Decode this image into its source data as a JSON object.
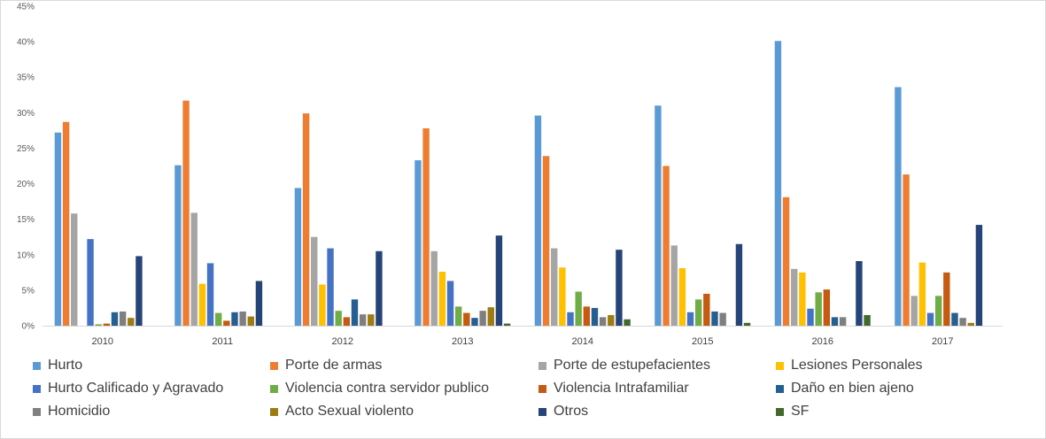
{
  "chart_data": {
    "type": "bar",
    "title": "",
    "xlabel": "",
    "ylabel": "",
    "ylim": [
      0,
      45
    ],
    "y_ticks": [
      "0%",
      "5%",
      "10%",
      "15%",
      "20%",
      "25%",
      "30%",
      "35%",
      "40%",
      "45%"
    ],
    "y_unit": "%",
    "grid": false,
    "legend_position": "bottom",
    "categories": [
      "2010",
      "2011",
      "2012",
      "2013",
      "2014",
      "2015",
      "2016",
      "2017"
    ],
    "series": [
      {
        "name": "Hurto",
        "color": "#5b9bd5",
        "values": [
          27.2,
          22.6,
          19.4,
          23.3,
          29.6,
          31.0,
          40.1,
          33.6
        ]
      },
      {
        "name": "Porte de armas",
        "color": "#ed7d31",
        "values": [
          28.7,
          31.7,
          29.9,
          27.8,
          23.9,
          22.5,
          18.1,
          21.3
        ]
      },
      {
        "name": "Porte de estupefacientes",
        "color": "#a5a5a5",
        "values": [
          15.8,
          15.9,
          12.5,
          10.5,
          10.9,
          11.3,
          8.0,
          4.2
        ]
      },
      {
        "name": "Lesiones Personales",
        "color": "#ffc000",
        "values": [
          0,
          5.9,
          5.8,
          7.6,
          8.2,
          8.1,
          7.5,
          8.9
        ]
      },
      {
        "name": "Hurto Calificado y Agravado",
        "color": "#4472c4",
        "values": [
          12.2,
          8.8,
          10.9,
          6.3,
          1.9,
          1.9,
          2.4,
          1.8
        ]
      },
      {
        "name": "Violencia contra servidor publico",
        "color": "#70ad47",
        "values": [
          0.2,
          1.8,
          2.1,
          2.7,
          4.8,
          3.7,
          4.7,
          4.2
        ]
      },
      {
        "name": "Violencia Intrafamiliar",
        "color": "#c55a11",
        "values": [
          0.3,
          0.7,
          1.2,
          1.8,
          2.7,
          4.5,
          5.1,
          7.5
        ]
      },
      {
        "name": "Daño en bien ajeno",
        "color": "#255e91",
        "values": [
          1.9,
          1.9,
          3.7,
          1.1,
          2.5,
          2.0,
          1.2,
          1.8
        ]
      },
      {
        "name": "Homicidio",
        "color": "#7f7f7f",
        "values": [
          2.0,
          2.0,
          1.6,
          2.1,
          1.2,
          1.8,
          1.2,
          1.1
        ]
      },
      {
        "name": "Acto Sexual violento",
        "color": "#9e7b13",
        "values": [
          1.1,
          1.3,
          1.6,
          2.6,
          1.5,
          0,
          0,
          0.4
        ]
      },
      {
        "name": "Otros",
        "color": "#264478",
        "values": [
          9.8,
          6.3,
          10.5,
          12.7,
          10.7,
          11.5,
          9.1,
          14.2
        ]
      },
      {
        "name": "SF",
        "color": "#43682b",
        "values": [
          0,
          0,
          0,
          0.3,
          0.9,
          0.4,
          1.5,
          0
        ]
      }
    ]
  }
}
